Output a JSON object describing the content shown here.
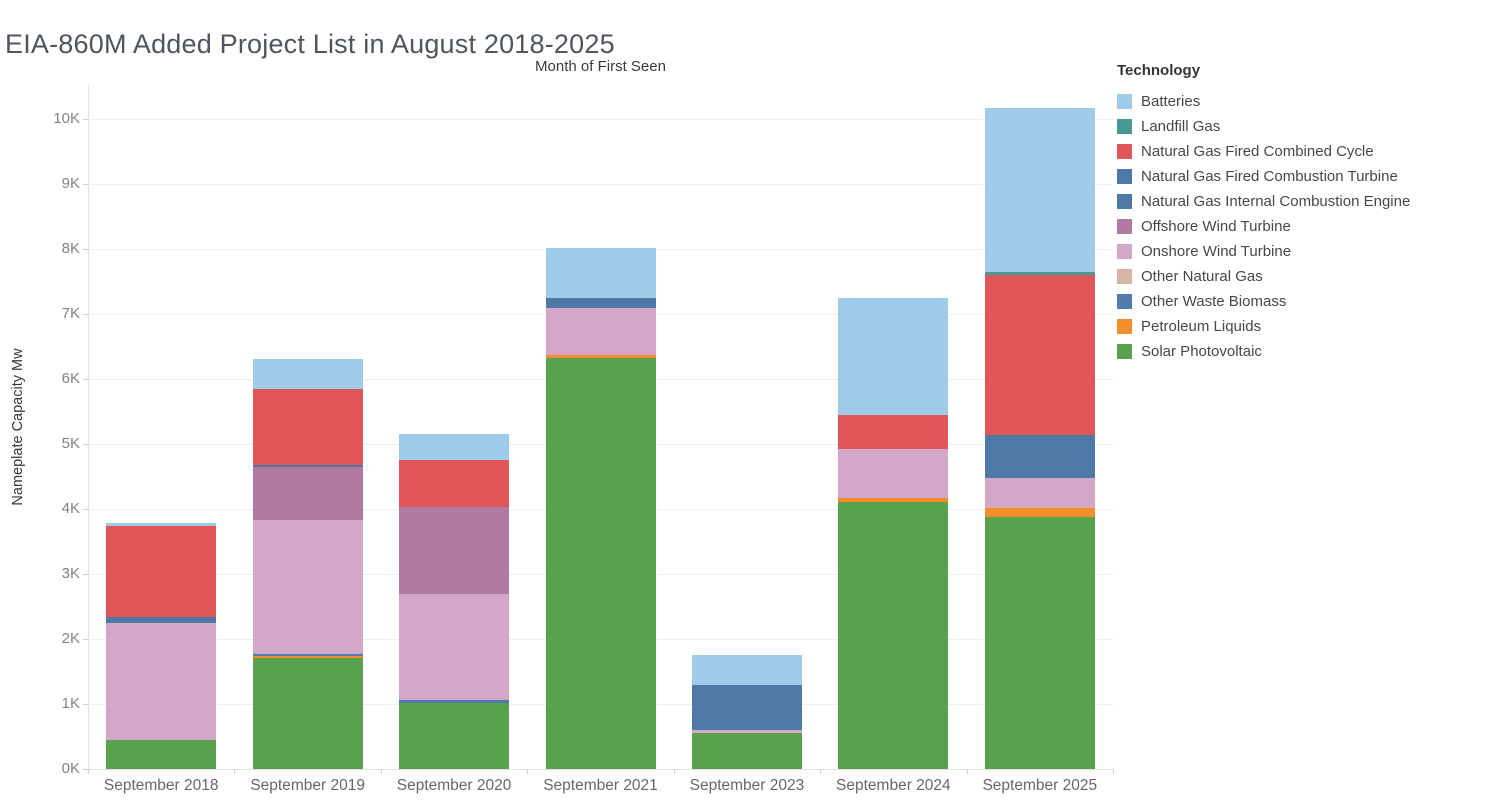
{
  "title": "EIA-860M Added Project List in August 2018-2025",
  "chart_data": {
    "type": "bar",
    "stacked": true,
    "title": "Month of First Seen",
    "ylabel": "Nameplate Capacity Mw",
    "legend_title": "Technology",
    "legend_position": "right",
    "grid": "horizontal",
    "ylim": [
      0,
      10500
    ],
    "y_tick_values": [
      0,
      1000,
      2000,
      3000,
      4000,
      5000,
      6000,
      7000,
      8000,
      9000,
      10000
    ],
    "y_tick_labels": [
      "0K",
      "1K",
      "2K",
      "3K",
      "4K",
      "5K",
      "6K",
      "7K",
      "8K",
      "9K",
      "10K"
    ],
    "categories": [
      "September 2018",
      "September 2019",
      "September 2020",
      "September 2021",
      "September 2023",
      "September 2024",
      "September 2025"
    ],
    "technologies": [
      {
        "name": "Batteries",
        "color": "#a0cbe8"
      },
      {
        "name": "Landfill Gas",
        "color": "#499894"
      },
      {
        "name": "Natural Gas Fired Combined Cycle",
        "color": "#e15759"
      },
      {
        "name": "Natural Gas Fired Combustion Turbine",
        "color": "#4e79a7"
      },
      {
        "name": "Natural Gas Internal Combustion Engine",
        "color": "#4d7aa5"
      },
      {
        "name": "Offshore Wind Turbine",
        "color": "#b07aa1"
      },
      {
        "name": "Onshore Wind Turbine",
        "color": "#d4a6c8"
      },
      {
        "name": "Other Natural Gas",
        "color": "#d7b5a6"
      },
      {
        "name": "Other Waste Biomass",
        "color": "#507daa"
      },
      {
        "name": "Petroleum Liquids",
        "color": "#f28e2b"
      },
      {
        "name": "Solar Photovoltaic",
        "color": "#59a14f"
      }
    ],
    "bars": [
      {
        "category": "September 2018",
        "total_mw": 3780,
        "segments": [
          {
            "tech": "Solar Photovoltaic",
            "mw": 440
          },
          {
            "tech": "Onshore Wind Turbine",
            "mw": 1800
          },
          {
            "tech": "Natural Gas Fired Combustion Turbine",
            "mw": 100
          },
          {
            "tech": "Natural Gas Fired Combined Cycle",
            "mw": 1400
          },
          {
            "tech": "Batteries",
            "mw": 40
          }
        ]
      },
      {
        "category": "September 2019",
        "total_mw": 6310,
        "segments": [
          {
            "tech": "Solar Photovoltaic",
            "mw": 1710
          },
          {
            "tech": "Petroleum Liquids",
            "mw": 30
          },
          {
            "tech": "Other Waste Biomass",
            "mw": 30
          },
          {
            "tech": "Onshore Wind Turbine",
            "mw": 2060
          },
          {
            "tech": "Offshore Wind Turbine",
            "mw": 810
          },
          {
            "tech": "Natural Gas Internal Combustion Engine",
            "mw": 30
          },
          {
            "tech": "Natural Gas Fired Combined Cycle",
            "mw": 1170
          },
          {
            "tech": "Batteries",
            "mw": 470
          }
        ]
      },
      {
        "category": "September 2020",
        "total_mw": 5160,
        "segments": [
          {
            "tech": "Solar Photovoltaic",
            "mw": 1020
          },
          {
            "tech": "Other Waste Biomass",
            "mw": 40
          },
          {
            "tech": "Onshore Wind Turbine",
            "mw": 1630
          },
          {
            "tech": "Offshore Wind Turbine",
            "mw": 1340
          },
          {
            "tech": "Natural Gas Fired Combined Cycle",
            "mw": 730
          },
          {
            "tech": "Batteries",
            "mw": 400
          }
        ]
      },
      {
        "category": "September 2021",
        "total_mw": 8020,
        "segments": [
          {
            "tech": "Solar Photovoltaic",
            "mw": 6330
          },
          {
            "tech": "Petroleum Liquids",
            "mw": 40
          },
          {
            "tech": "Onshore Wind Turbine",
            "mw": 720
          },
          {
            "tech": "Natural Gas Fired Combustion Turbine",
            "mw": 160
          },
          {
            "tech": "Batteries",
            "mw": 770
          }
        ]
      },
      {
        "category": "September 2023",
        "total_mw": 1750,
        "segments": [
          {
            "tech": "Solar Photovoltaic",
            "mw": 550
          },
          {
            "tech": "Onshore Wind Turbine",
            "mw": 50
          },
          {
            "tech": "Natural Gas Fired Combustion Turbine",
            "mw": 690
          },
          {
            "tech": "Batteries",
            "mw": 460
          }
        ]
      },
      {
        "category": "September 2024",
        "total_mw": 7240,
        "segments": [
          {
            "tech": "Solar Photovoltaic",
            "mw": 4110
          },
          {
            "tech": "Petroleum Liquids",
            "mw": 60
          },
          {
            "tech": "Onshore Wind Turbine",
            "mw": 750
          },
          {
            "tech": "Natural Gas Fired Combined Cycle",
            "mw": 530
          },
          {
            "tech": "Batteries",
            "mw": 1790
          }
        ]
      },
      {
        "category": "September 2025",
        "total_mw": 10170,
        "segments": [
          {
            "tech": "Solar Photovoltaic",
            "mw": 3880
          },
          {
            "tech": "Petroleum Liquids",
            "mw": 130
          },
          {
            "tech": "Other Natural Gas",
            "mw": 20
          },
          {
            "tech": "Onshore Wind Turbine",
            "mw": 440
          },
          {
            "tech": "Natural Gas Fired Combustion Turbine",
            "mw": 670
          },
          {
            "tech": "Natural Gas Fired Combined Cycle",
            "mw": 2460
          },
          {
            "tech": "Landfill Gas",
            "mw": 40
          },
          {
            "tech": "Batteries",
            "mw": 2530
          }
        ]
      }
    ]
  }
}
